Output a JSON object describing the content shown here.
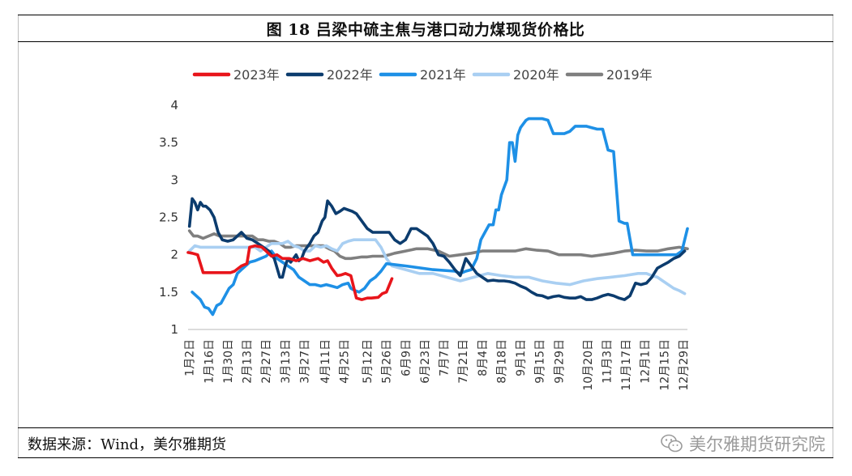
{
  "title": "图 18    吕梁中硫主焦与港口动力煤现货价格比",
  "source": "数据来源：Wind，美尔雅期货",
  "watermark": "美尔雅期货研究院",
  "watermark_icon": "wechat-icon",
  "chart_data": {
    "type": "line",
    "title": "吕梁中硫主焦与港口动力煤现货价格比",
    "xlabel": "",
    "ylabel": "",
    "ylim": [
      1,
      4
    ],
    "yticks": [
      1,
      1.5,
      2,
      2.5,
      3,
      3.5,
      4
    ],
    "xlim": [
      1,
      366
    ],
    "categories": [
      "1月2日",
      "1月16日",
      "1月30日",
      "2月13日",
      "2月27日",
      "3月13日",
      "3月27日",
      "4月11日",
      "4月25日",
      "5月12日",
      "5月26日",
      "6月9日",
      "6月23日",
      "7月7日",
      "7月21日",
      "8月4日",
      "8月18日",
      "9月1日",
      "9月15日",
      "9月29日",
      "10月20日",
      "11月3日",
      "11月17日",
      "12月1日",
      "12月15日",
      "12月29日"
    ],
    "category_days": [
      2,
      16,
      30,
      44,
      58,
      72,
      86,
      101,
      115,
      132,
      146,
      160,
      174,
      188,
      202,
      216,
      230,
      244,
      258,
      272,
      293,
      307,
      321,
      335,
      349,
      363
    ],
    "legend": [
      "2023年",
      "2022年",
      "2021年",
      "2020年",
      "2019年"
    ],
    "series": [
      {
        "name": "2023年",
        "color": "#e8151b",
        "x": [
          1,
          4,
          8,
          10,
          12,
          18,
          25,
          32,
          35,
          40,
          44,
          46,
          50,
          55,
          58,
          62,
          66,
          70,
          75,
          80,
          85,
          90,
          96,
          100,
          103,
          106,
          110,
          113,
          116,
          120,
          124,
          128,
          132,
          135,
          140,
          143,
          146,
          150
        ],
        "y": [
          2.03,
          2.02,
          2.0,
          1.88,
          1.76,
          1.76,
          1.76,
          1.76,
          1.78,
          1.85,
          1.88,
          2.1,
          2.12,
          2.1,
          2.05,
          1.98,
          2.0,
          1.95,
          1.95,
          1.92,
          1.95,
          1.92,
          1.95,
          1.9,
          1.92,
          1.82,
          1.72,
          1.73,
          1.75,
          1.72,
          1.42,
          1.4,
          1.42,
          1.42,
          1.43,
          1.48,
          1.5,
          1.68
        ]
      },
      {
        "name": "2022年",
        "color": "#0c3c6e",
        "x": [
          2,
          4,
          6,
          8,
          10,
          12,
          14,
          17,
          20,
          23,
          26,
          30,
          34,
          37,
          40,
          44,
          48,
          52,
          56,
          60,
          64,
          68,
          70,
          72,
          74,
          76,
          78,
          80,
          82,
          84,
          86,
          88,
          90,
          93,
          96,
          99,
          101,
          103,
          106,
          109,
          112,
          115,
          118,
          121,
          124,
          128,
          132,
          136,
          140,
          144,
          148,
          152,
          156,
          160,
          164,
          168,
          172,
          176,
          180,
          184,
          188,
          192,
          196,
          200,
          204,
          208,
          212,
          216,
          220,
          224,
          228,
          232,
          236,
          240,
          244,
          248,
          252,
          256,
          260,
          264,
          268,
          272,
          276,
          280,
          284,
          288,
          292,
          296,
          300,
          304,
          308,
          312,
          316,
          320,
          324,
          328,
          332,
          336,
          340,
          344,
          348,
          352,
          356,
          360,
          364
        ],
        "y": [
          2.38,
          2.75,
          2.7,
          2.6,
          2.7,
          2.65,
          2.65,
          2.6,
          2.5,
          2.3,
          2.2,
          2.18,
          2.2,
          2.25,
          2.3,
          2.22,
          2.2,
          2.15,
          2.1,
          2.05,
          1.95,
          1.7,
          1.7,
          1.85,
          1.95,
          1.9,
          1.95,
          2.0,
          1.92,
          1.95,
          2.05,
          2.1,
          2.15,
          2.25,
          2.3,
          2.45,
          2.5,
          2.72,
          2.65,
          2.55,
          2.58,
          2.62,
          2.6,
          2.58,
          2.55,
          2.45,
          2.35,
          2.3,
          2.3,
          2.3,
          2.3,
          2.2,
          2.15,
          2.2,
          2.35,
          2.35,
          2.3,
          2.25,
          2.15,
          2.0,
          1.98,
          1.9,
          1.8,
          1.72,
          1.95,
          1.85,
          1.75,
          1.7,
          1.65,
          1.66,
          1.65,
          1.65,
          1.64,
          1.62,
          1.58,
          1.55,
          1.5,
          1.46,
          1.45,
          1.42,
          1.44,
          1.45,
          1.43,
          1.42,
          1.42,
          1.44,
          1.4,
          1.4,
          1.42,
          1.45,
          1.47,
          1.45,
          1.42,
          1.4,
          1.45,
          1.62,
          1.6,
          1.62,
          1.7,
          1.82,
          1.86,
          1.9,
          1.95,
          1.98,
          2.05
        ]
      },
      {
        "name": "2021年",
        "color": "#1e90e6",
        "x": [
          4,
          7,
          10,
          13,
          16,
          19,
          22,
          25,
          28,
          31,
          34,
          37,
          40,
          43,
          46,
          50,
          54,
          58,
          62,
          66,
          70,
          74,
          78,
          82,
          86,
          90,
          94,
          98,
          102,
          106,
          110,
          114,
          118,
          120,
          123,
          126,
          130,
          134,
          138,
          142,
          146,
          160,
          180,
          196,
          200,
          204,
          208,
          212,
          215,
          218,
          221,
          224,
          226,
          228,
          230,
          234,
          236,
          238,
          240,
          242,
          244,
          246,
          248,
          250,
          252,
          254,
          256,
          260,
          264,
          268,
          272,
          276,
          280,
          284,
          288,
          292,
          296,
          300,
          304,
          308,
          312,
          316,
          320,
          322,
          326,
          330,
          334,
          340,
          346,
          350,
          354,
          358,
          362,
          366
        ],
        "y": [
          1.5,
          1.45,
          1.4,
          1.3,
          1.28,
          1.2,
          1.32,
          1.35,
          1.45,
          1.55,
          1.6,
          1.75,
          1.8,
          1.85,
          1.9,
          1.92,
          1.95,
          1.98,
          2.05,
          1.95,
          1.9,
          1.85,
          1.8,
          1.7,
          1.65,
          1.6,
          1.6,
          1.58,
          1.6,
          1.58,
          1.56,
          1.6,
          1.62,
          1.55,
          1.52,
          1.5,
          1.55,
          1.65,
          1.7,
          1.78,
          1.88,
          1.85,
          1.8,
          1.78,
          1.75,
          1.78,
          1.8,
          1.95,
          2.2,
          2.3,
          2.4,
          2.4,
          2.6,
          2.6,
          2.8,
          3.0,
          3.5,
          3.5,
          3.25,
          3.6,
          3.7,
          3.75,
          3.8,
          3.82,
          3.82,
          3.82,
          3.82,
          3.82,
          3.8,
          3.62,
          3.62,
          3.62,
          3.65,
          3.72,
          3.72,
          3.72,
          3.7,
          3.68,
          3.68,
          3.4,
          3.38,
          2.45,
          2.42,
          2.42,
          2.0,
          2.0,
          2.0,
          2.0,
          2.0,
          2.0,
          2.0,
          2.0,
          2.05,
          2.35
        ]
      },
      {
        "name": "2020年",
        "color": "#a9cff2",
        "x": [
          2,
          6,
          10,
          14,
          18,
          22,
          26,
          30,
          34,
          38,
          42,
          46,
          50,
          54,
          58,
          62,
          66,
          70,
          74,
          78,
          82,
          86,
          90,
          94,
          98,
          102,
          106,
          110,
          114,
          118,
          122,
          126,
          130,
          134,
          138,
          142,
          146,
          150,
          160,
          170,
          180,
          190,
          200,
          210,
          220,
          230,
          240,
          250,
          260,
          270,
          280,
          290,
          300,
          310,
          320,
          330,
          336,
          340,
          344,
          348,
          352,
          356,
          360,
          364
        ],
        "y": [
          2.05,
          2.12,
          2.1,
          2.1,
          2.1,
          2.1,
          2.1,
          2.1,
          2.1,
          2.1,
          2.1,
          2.1,
          2.1,
          2.05,
          2.1,
          2.15,
          2.15,
          2.15,
          2.18,
          2.12,
          2.1,
          2.05,
          2.05,
          2.12,
          2.1,
          2.12,
          2.08,
          2.05,
          2.15,
          2.18,
          2.2,
          2.2,
          2.2,
          2.2,
          2.2,
          2.1,
          1.95,
          1.85,
          1.8,
          1.75,
          1.75,
          1.7,
          1.65,
          1.7,
          1.75,
          1.72,
          1.7,
          1.7,
          1.65,
          1.62,
          1.6,
          1.65,
          1.68,
          1.7,
          1.72,
          1.75,
          1.75,
          1.72,
          1.7,
          1.65,
          1.6,
          1.55,
          1.52,
          1.48
        ]
      },
      {
        "name": "2019年",
        "color": "#7f7f7f",
        "x": [
          2,
          5,
          8,
          12,
          16,
          20,
          24,
          28,
          32,
          36,
          40,
          44,
          48,
          52,
          56,
          60,
          64,
          68,
          72,
          76,
          80,
          84,
          88,
          92,
          96,
          100,
          104,
          108,
          112,
          116,
          120,
          124,
          128,
          132,
          136,
          140,
          144,
          148,
          152,
          160,
          168,
          176,
          184,
          192,
          200,
          208,
          216,
          224,
          232,
          240,
          248,
          256,
          264,
          272,
          280,
          288,
          296,
          304,
          312,
          320,
          328,
          336,
          344,
          352,
          360,
          366
        ],
        "y": [
          2.32,
          2.25,
          2.25,
          2.22,
          2.25,
          2.28,
          2.25,
          2.25,
          2.25,
          2.25,
          2.25,
          2.25,
          2.25,
          2.2,
          2.2,
          2.18,
          2.18,
          2.15,
          2.1,
          2.1,
          2.12,
          2.12,
          2.12,
          2.12,
          2.12,
          2.12,
          2.08,
          2.05,
          1.98,
          1.95,
          1.95,
          1.96,
          1.97,
          1.97,
          1.98,
          1.98,
          1.98,
          2.0,
          2.02,
          2.05,
          2.08,
          2.08,
          2.05,
          1.98,
          2.0,
          2.02,
          2.05,
          2.05,
          2.05,
          2.05,
          2.08,
          2.06,
          2.05,
          2.0,
          2.0,
          2.0,
          1.98,
          2.0,
          2.02,
          2.05,
          2.06,
          2.05,
          2.05,
          2.08,
          2.1,
          2.08
        ]
      }
    ]
  }
}
